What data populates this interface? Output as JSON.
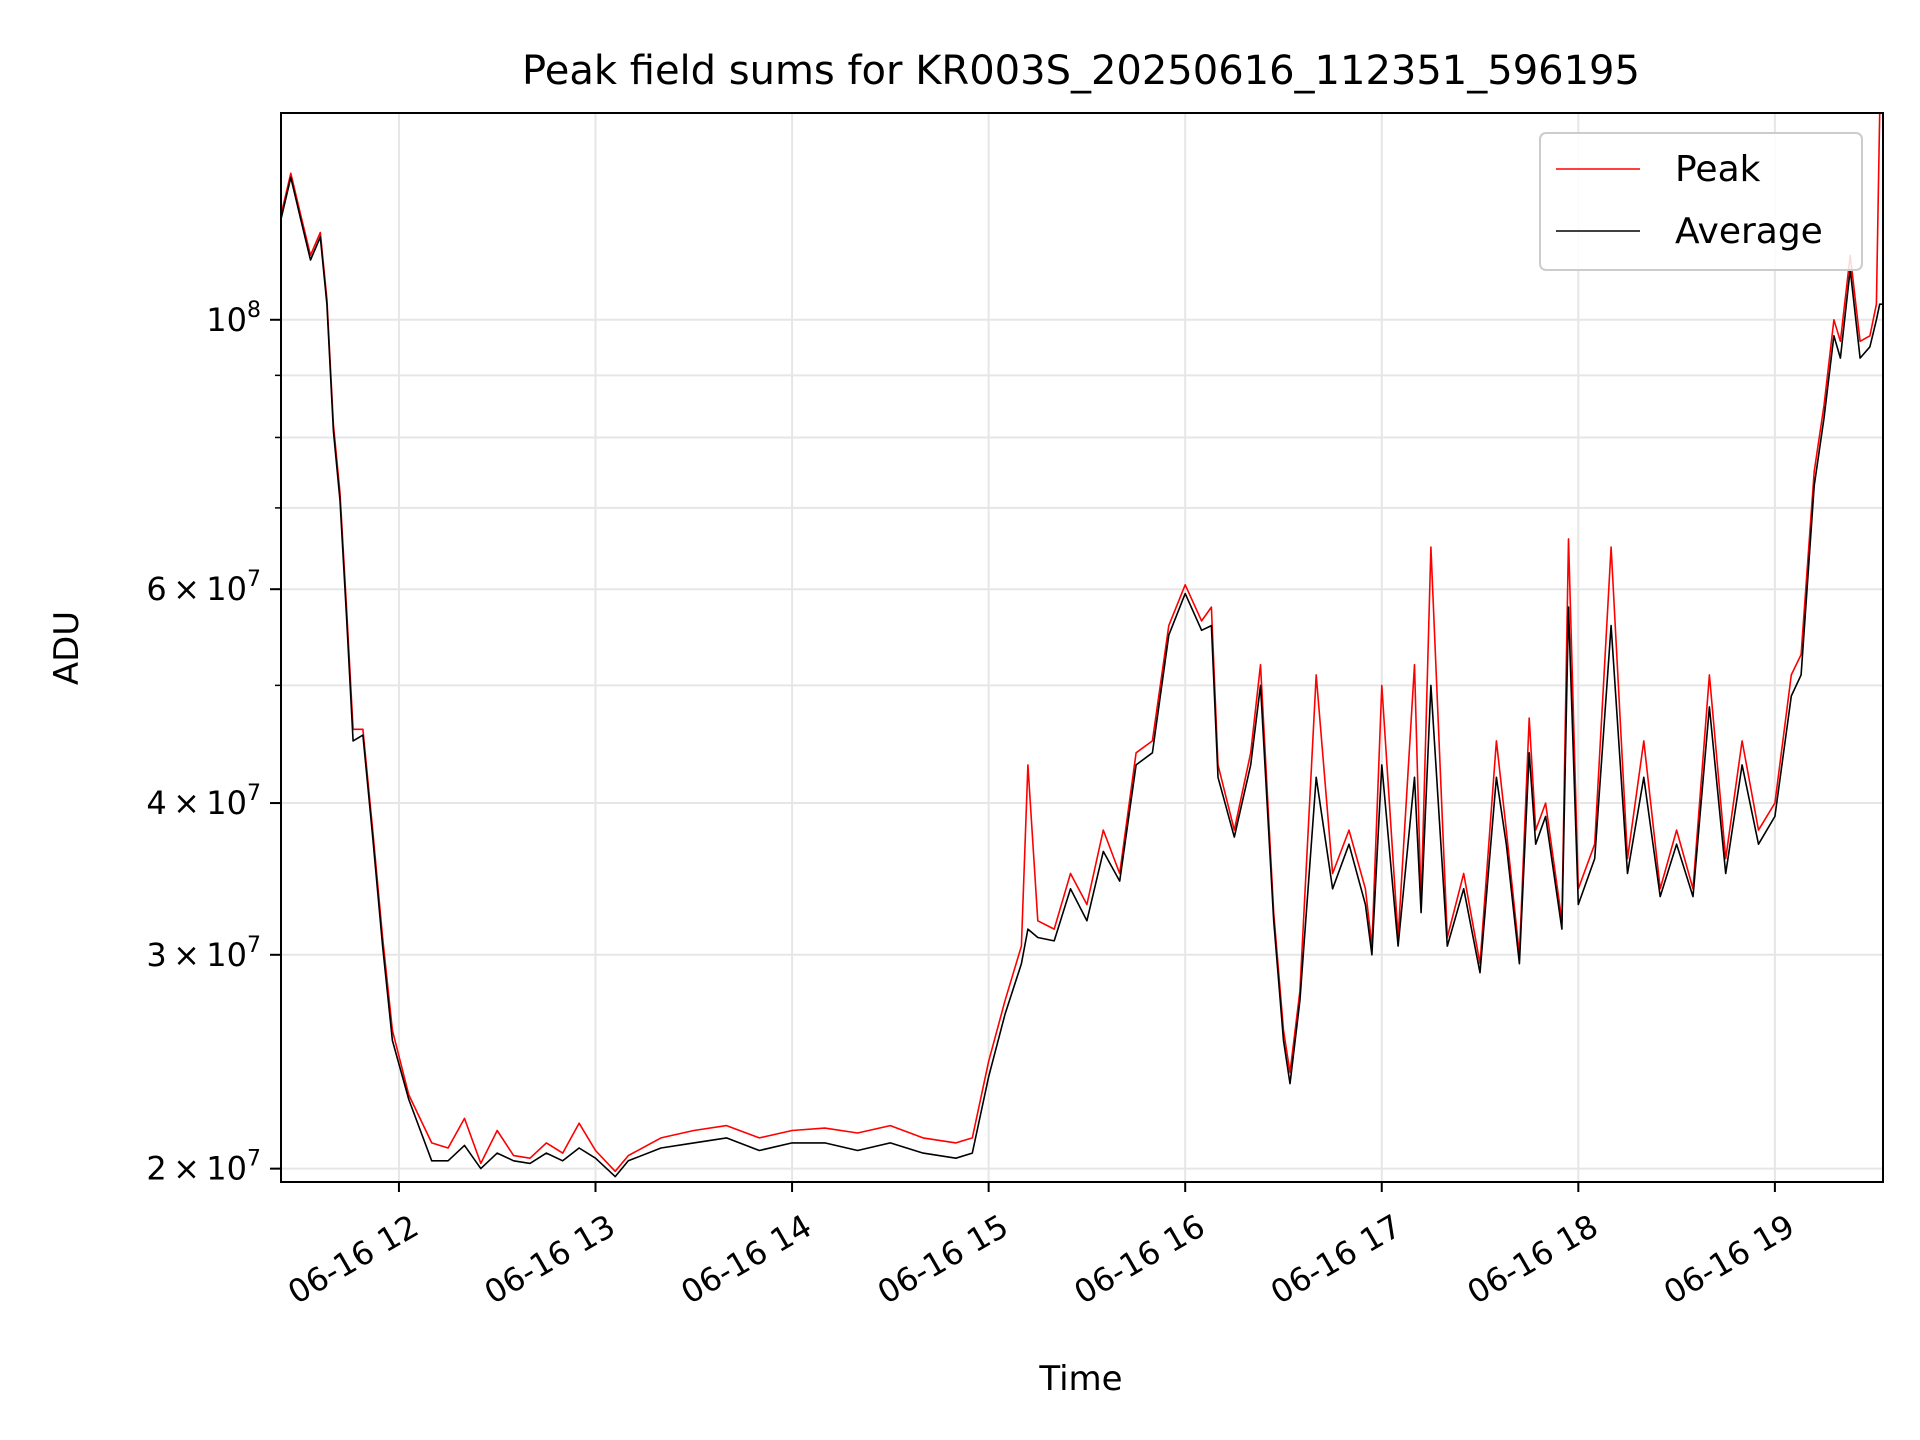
{
  "chart_data": {
    "type": "line",
    "title": "Peak field sums for KR003S_20250616_112351_596195",
    "xlabel": "Time",
    "ylabel": "ADU",
    "y_scale": "log",
    "ylim": [
      19500000,
      148000000
    ],
    "xlim": [
      "2025-06-16 11:24",
      "2025-06-16 19:33"
    ],
    "grid": true,
    "legend": "top-right",
    "x_ticks": [
      "06-16 12",
      "06-16 13",
      "06-16 14",
      "06-16 15",
      "06-16 16",
      "06-16 17",
      "06-16 18",
      "06-16 19"
    ],
    "y_ticks": [
      {
        "value": 20000000,
        "mantissa": "2",
        "exponent": "7"
      },
      {
        "value": 30000000,
        "mantissa": "3",
        "exponent": "7"
      },
      {
        "value": 40000000,
        "mantissa": "4",
        "exponent": "7"
      },
      {
        "value": 60000000,
        "mantissa": "6",
        "exponent": "7"
      },
      {
        "value": 100000000,
        "mantissa": "",
        "exponent": "8"
      }
    ],
    "colors": {
      "Peak": "#ff0000",
      "Average": "#000000",
      "grid": "#e6e6e6"
    },
    "series": [
      {
        "name": "Peak",
        "x": [
          "2025-06-16 11:24",
          "2025-06-16 11:27",
          "2025-06-16 11:30",
          "2025-06-16 11:33",
          "2025-06-16 11:36",
          "2025-06-16 11:38",
          "2025-06-16 11:40",
          "2025-06-16 11:42",
          "2025-06-16 11:44",
          "2025-06-16 11:46",
          "2025-06-16 11:49",
          "2025-06-16 11:52",
          "2025-06-16 11:55",
          "2025-06-16 11:58",
          "2025-06-16 12:03",
          "2025-06-16 12:10",
          "2025-06-16 12:15",
          "2025-06-16 12:20",
          "2025-06-16 12:25",
          "2025-06-16 12:30",
          "2025-06-16 12:35",
          "2025-06-16 12:40",
          "2025-06-16 12:45",
          "2025-06-16 12:50",
          "2025-06-16 12:55",
          "2025-06-16 13:00",
          "2025-06-16 13:06",
          "2025-06-16 13:10",
          "2025-06-16 13:20",
          "2025-06-16 13:30",
          "2025-06-16 13:40",
          "2025-06-16 13:50",
          "2025-06-16 14:00",
          "2025-06-16 14:10",
          "2025-06-16 14:20",
          "2025-06-16 14:30",
          "2025-06-16 14:40",
          "2025-06-16 14:50",
          "2025-06-16 14:55",
          "2025-06-16 15:00",
          "2025-06-16 15:05",
          "2025-06-16 15:10",
          "2025-06-16 15:12",
          "2025-06-16 15:15",
          "2025-06-16 15:20",
          "2025-06-16 15:25",
          "2025-06-16 15:30",
          "2025-06-16 15:35",
          "2025-06-16 15:40",
          "2025-06-16 15:45",
          "2025-06-16 15:50",
          "2025-06-16 15:55",
          "2025-06-16 16:00",
          "2025-06-16 16:05",
          "2025-06-16 16:08",
          "2025-06-16 16:10",
          "2025-06-16 16:15",
          "2025-06-16 16:20",
          "2025-06-16 16:23",
          "2025-06-16 16:27",
          "2025-06-16 16:30",
          "2025-06-16 16:32",
          "2025-06-16 16:35",
          "2025-06-16 16:40",
          "2025-06-16 16:45",
          "2025-06-16 16:50",
          "2025-06-16 16:55",
          "2025-06-16 16:57",
          "2025-06-16 17:00",
          "2025-06-16 17:05",
          "2025-06-16 17:10",
          "2025-06-16 17:12",
          "2025-06-16 17:15",
          "2025-06-16 17:20",
          "2025-06-16 17:25",
          "2025-06-16 17:30",
          "2025-06-16 17:35",
          "2025-06-16 17:38",
          "2025-06-16 17:42",
          "2025-06-16 17:45",
          "2025-06-16 17:47",
          "2025-06-16 17:50",
          "2025-06-16 17:55",
          "2025-06-16 17:57",
          "2025-06-16 18:00",
          "2025-06-16 18:05",
          "2025-06-16 18:10",
          "2025-06-16 18:15",
          "2025-06-16 18:20",
          "2025-06-16 18:25",
          "2025-06-16 18:30",
          "2025-06-16 18:35",
          "2025-06-16 18:40",
          "2025-06-16 18:45",
          "2025-06-16 18:50",
          "2025-06-16 18:55",
          "2025-06-16 19:00",
          "2025-06-16 19:05",
          "2025-06-16 19:08",
          "2025-06-16 19:12",
          "2025-06-16 19:15",
          "2025-06-16 19:18",
          "2025-06-16 19:20",
          "2025-06-16 19:23",
          "2025-06-16 19:26",
          "2025-06-16 19:29",
          "2025-06-16 19:31",
          "2025-06-16 19:32",
          "2025-06-16 19:33"
        ],
        "values": [
          122000000,
          132000000,
          122000000,
          113000000,
          118000000,
          104000000,
          82000000,
          72000000,
          58000000,
          46000000,
          46000000,
          38000000,
          31000000,
          26000000,
          23000000,
          21000000,
          20800000,
          22000000,
          20200000,
          21500000,
          20500000,
          20400000,
          21000000,
          20600000,
          21800000,
          20700000,
          19900000,
          20500000,
          21200000,
          21500000,
          21700000,
          21200000,
          21500000,
          21600000,
          21400000,
          21700000,
          21200000,
          21000000,
          21200000,
          24500000,
          27500000,
          30500000,
          43000000,
          32000000,
          31500000,
          35000000,
          33000000,
          38000000,
          35000000,
          44000000,
          45000000,
          56000000,
          60500000,
          56500000,
          58000000,
          43000000,
          38000000,
          44000000,
          52000000,
          32500000,
          26000000,
          24000000,
          28000000,
          51000000,
          35000000,
          38000000,
          34000000,
          30500000,
          50000000,
          31000000,
          52000000,
          33000000,
          65000000,
          31000000,
          35000000,
          29500000,
          45000000,
          38000000,
          30000000,
          47000000,
          38000000,
          40000000,
          32000000,
          66000000,
          34000000,
          37000000,
          65000000,
          36000000,
          45000000,
          34000000,
          38000000,
          34000000,
          51000000,
          36000000,
          45000000,
          38000000,
          40000000,
          51000000,
          53000000,
          75000000,
          85000000,
          100000000,
          96000000,
          113000000,
          96000000,
          97000000,
          103000000,
          148000000,
          148000000
        ]
      },
      {
        "name": "Average",
        "x": [
          "2025-06-16 11:24",
          "2025-06-16 11:27",
          "2025-06-16 11:30",
          "2025-06-16 11:33",
          "2025-06-16 11:36",
          "2025-06-16 11:38",
          "2025-06-16 11:40",
          "2025-06-16 11:42",
          "2025-06-16 11:44",
          "2025-06-16 11:46",
          "2025-06-16 11:49",
          "2025-06-16 11:52",
          "2025-06-16 11:55",
          "2025-06-16 11:58",
          "2025-06-16 12:03",
          "2025-06-16 12:10",
          "2025-06-16 12:15",
          "2025-06-16 12:20",
          "2025-06-16 12:25",
          "2025-06-16 12:30",
          "2025-06-16 12:35",
          "2025-06-16 12:40",
          "2025-06-16 12:45",
          "2025-06-16 12:50",
          "2025-06-16 12:55",
          "2025-06-16 13:00",
          "2025-06-16 13:06",
          "2025-06-16 13:10",
          "2025-06-16 13:20",
          "2025-06-16 13:30",
          "2025-06-16 13:40",
          "2025-06-16 13:50",
          "2025-06-16 14:00",
          "2025-06-16 14:10",
          "2025-06-16 14:20",
          "2025-06-16 14:30",
          "2025-06-16 14:40",
          "2025-06-16 14:50",
          "2025-06-16 14:55",
          "2025-06-16 15:00",
          "2025-06-16 15:05",
          "2025-06-16 15:10",
          "2025-06-16 15:12",
          "2025-06-16 15:15",
          "2025-06-16 15:20",
          "2025-06-16 15:25",
          "2025-06-16 15:30",
          "2025-06-16 15:35",
          "2025-06-16 15:40",
          "2025-06-16 15:45",
          "2025-06-16 15:50",
          "2025-06-16 15:55",
          "2025-06-16 16:00",
          "2025-06-16 16:05",
          "2025-06-16 16:08",
          "2025-06-16 16:10",
          "2025-06-16 16:15",
          "2025-06-16 16:20",
          "2025-06-16 16:23",
          "2025-06-16 16:27",
          "2025-06-16 16:30",
          "2025-06-16 16:32",
          "2025-06-16 16:35",
          "2025-06-16 16:40",
          "2025-06-16 16:45",
          "2025-06-16 16:50",
          "2025-06-16 16:55",
          "2025-06-16 16:57",
          "2025-06-16 17:00",
          "2025-06-16 17:05",
          "2025-06-16 17:10",
          "2025-06-16 17:12",
          "2025-06-16 17:15",
          "2025-06-16 17:20",
          "2025-06-16 17:25",
          "2025-06-16 17:30",
          "2025-06-16 17:35",
          "2025-06-16 17:38",
          "2025-06-16 17:42",
          "2025-06-16 17:45",
          "2025-06-16 17:47",
          "2025-06-16 17:50",
          "2025-06-16 17:55",
          "2025-06-16 17:57",
          "2025-06-16 18:00",
          "2025-06-16 18:05",
          "2025-06-16 18:10",
          "2025-06-16 18:15",
          "2025-06-16 18:20",
          "2025-06-16 18:25",
          "2025-06-16 18:30",
          "2025-06-16 18:35",
          "2025-06-16 18:40",
          "2025-06-16 18:45",
          "2025-06-16 18:50",
          "2025-06-16 18:55",
          "2025-06-16 19:00",
          "2025-06-16 19:05",
          "2025-06-16 19:08",
          "2025-06-16 19:12",
          "2025-06-16 19:15",
          "2025-06-16 19:18",
          "2025-06-16 19:20",
          "2025-06-16 19:23",
          "2025-06-16 19:26",
          "2025-06-16 19:29",
          "2025-06-16 19:31",
          "2025-06-16 19:32",
          "2025-06-16 19:33"
        ],
        "values": [
          121000000,
          131000000,
          121000000,
          112000000,
          117000000,
          103000000,
          81000000,
          71000000,
          57000000,
          45000000,
          45500000,
          37500000,
          30500000,
          25500000,
          22800000,
          20300000,
          20300000,
          20900000,
          20000000,
          20600000,
          20300000,
          20200000,
          20600000,
          20300000,
          20800000,
          20400000,
          19700000,
          20300000,
          20800000,
          21000000,
          21200000,
          20700000,
          21000000,
          21000000,
          20700000,
          21000000,
          20600000,
          20400000,
          20600000,
          23800000,
          26800000,
          29500000,
          31500000,
          31000000,
          30800000,
          34000000,
          32000000,
          36500000,
          34500000,
          43000000,
          44000000,
          55000000,
          59500000,
          55500000,
          56000000,
          42000000,
          37500000,
          43000000,
          50000000,
          32000000,
          25500000,
          23500000,
          27500000,
          42000000,
          34000000,
          37000000,
          33000000,
          30000000,
          43000000,
          30500000,
          42000000,
          32500000,
          50000000,
          30500000,
          34000000,
          29000000,
          42000000,
          37000000,
          29500000,
          44000000,
          37000000,
          39000000,
          31500000,
          58000000,
          33000000,
          36000000,
          56000000,
          35000000,
          42000000,
          33500000,
          37000000,
          33500000,
          48000000,
          35000000,
          43000000,
          37000000,
          39000000,
          49000000,
          51000000,
          73000000,
          83000000,
          97000000,
          93000000,
          110000000,
          93000000,
          95000000,
          100000000,
          103000000,
          103000000
        ]
      }
    ]
  }
}
